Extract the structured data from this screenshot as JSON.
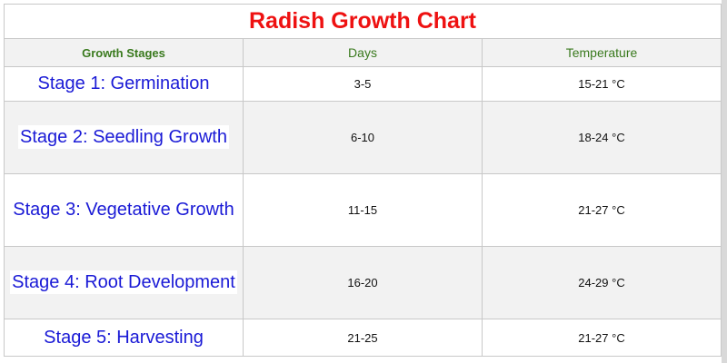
{
  "title": "Radish Growth Chart",
  "columns": [
    "Growth Stages",
    "Days",
    "Temperature"
  ],
  "rows": [
    {
      "stage": "Stage 1: Germination",
      "days": "3-5",
      "temperature": "15-21 °C"
    },
    {
      "stage": "Stage 2: Seedling Growth",
      "days": "6-10",
      "temperature": "18-24 °C"
    },
    {
      "stage": "Stage 3: Vegetative Growth",
      "days": "11-15",
      "temperature": "21-27 °C"
    },
    {
      "stage": "Stage 4: Root Development",
      "days": "16-20",
      "temperature": "24-29 °C"
    },
    {
      "stage": "Stage 5: Harvesting",
      "days": "21-25",
      "temperature": "21-27 °C"
    }
  ],
  "colors": {
    "title": "#ee1111",
    "header_text": "#3a7a1e",
    "stage_text": "#1a1ad6",
    "alt_row": "#f2f2f2"
  }
}
